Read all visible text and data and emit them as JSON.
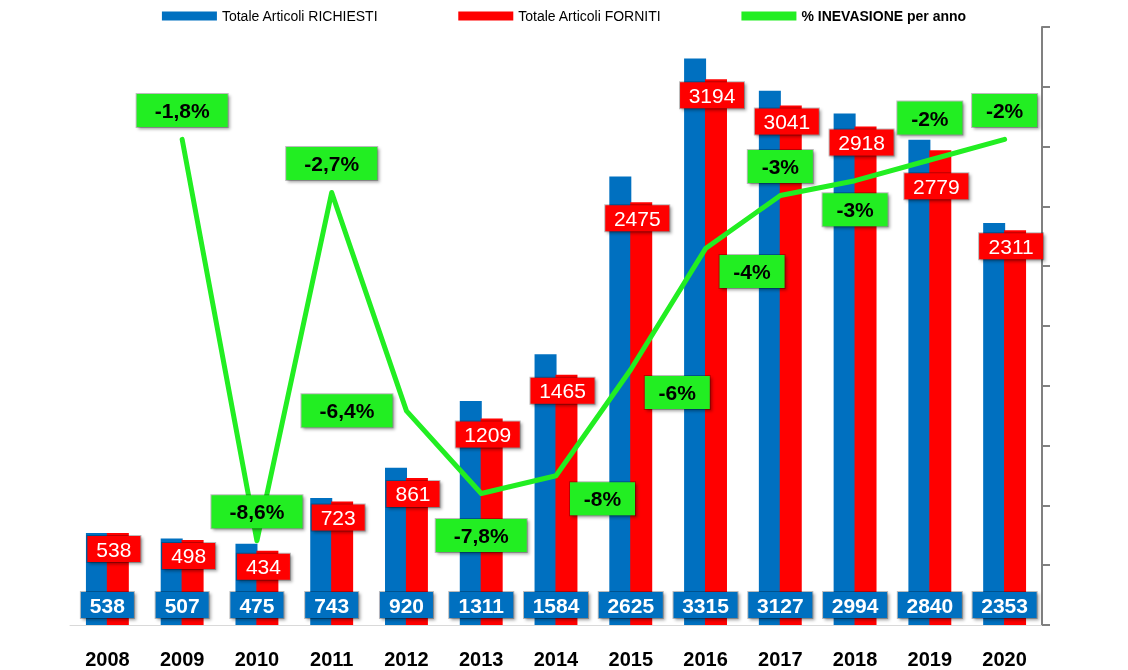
{
  "chart_data": {
    "type": "bar",
    "categories": [
      "2008",
      "2009",
      "2010",
      "2011",
      "2012",
      "2013",
      "2014",
      "2015",
      "2016",
      "2017",
      "2018",
      "2019",
      "2020"
    ],
    "series": [
      {
        "name": "Totale Articoli RICHIESTI",
        "color": "#0070c0",
        "values": [
          538,
          507,
          475,
          743,
          920,
          1311,
          1584,
          2625,
          3315,
          3127,
          2994,
          2840,
          2353
        ]
      },
      {
        "name": "Totale Articoli FORNITI",
        "color": "#ff0000",
        "values": [
          538,
          498,
          434,
          723,
          861,
          1209,
          1465,
          2475,
          3194,
          3041,
          2918,
          2779,
          2311
        ]
      },
      {
        "name": "% INEVASIONE per anno",
        "type": "line",
        "axis": "y2",
        "color": "#22ee22",
        "values": [
          null,
          -1.8,
          -8.6,
          -2.7,
          -6.4,
          -7.8,
          -7.5,
          -5.7,
          -3.65,
          -2.75,
          -2.5,
          -2.15,
          -1.8
        ],
        "value_labels": [
          null,
          "-1,8%",
          "-8,6%",
          "-2,7%",
          "-6,4%",
          "-7,8%",
          "-8%",
          "-6%",
          "-4%",
          "-3%",
          "-3%",
          "-2%",
          "-2%"
        ]
      }
    ],
    "data_labels": true,
    "ylim": [
      0,
      3500
    ],
    "yticks": [
      {
        "value": 0,
        "label": null
      },
      {
        "value": 350,
        "label": null
      },
      {
        "value": 700,
        "label": null
      },
      {
        "value": 1050,
        "label": null
      },
      {
        "value": 1400,
        "label": null
      },
      {
        "value": 1750,
        "label": null
      },
      {
        "value": 2100,
        "label": null
      },
      {
        "value": 2450,
        "label": null
      },
      {
        "value": 2800,
        "label": null
      },
      {
        "value": 3150,
        "label": null
      },
      {
        "value": 3500,
        "label": null
      }
    ],
    "tick_labels": "x",
    "legend": "top",
    "grid": false,
    "marker": "none"
  }
}
